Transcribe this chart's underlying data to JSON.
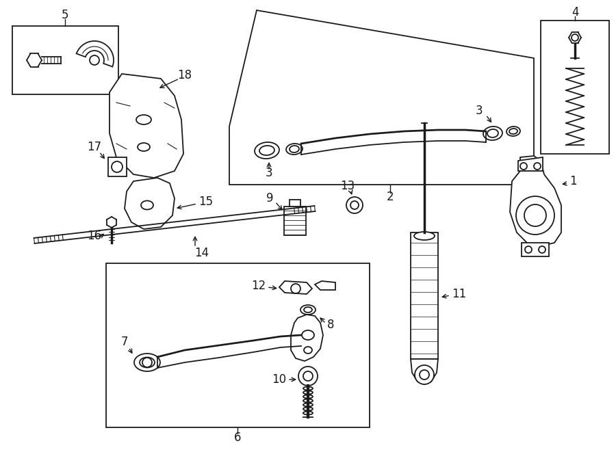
{
  "bg_color": "#ffffff",
  "line_color": "#1a1a1a",
  "line_width": 1.3,
  "label_fontsize": 12,
  "fig_width": 9.0,
  "fig_height": 6.61,
  "dpi": 100
}
